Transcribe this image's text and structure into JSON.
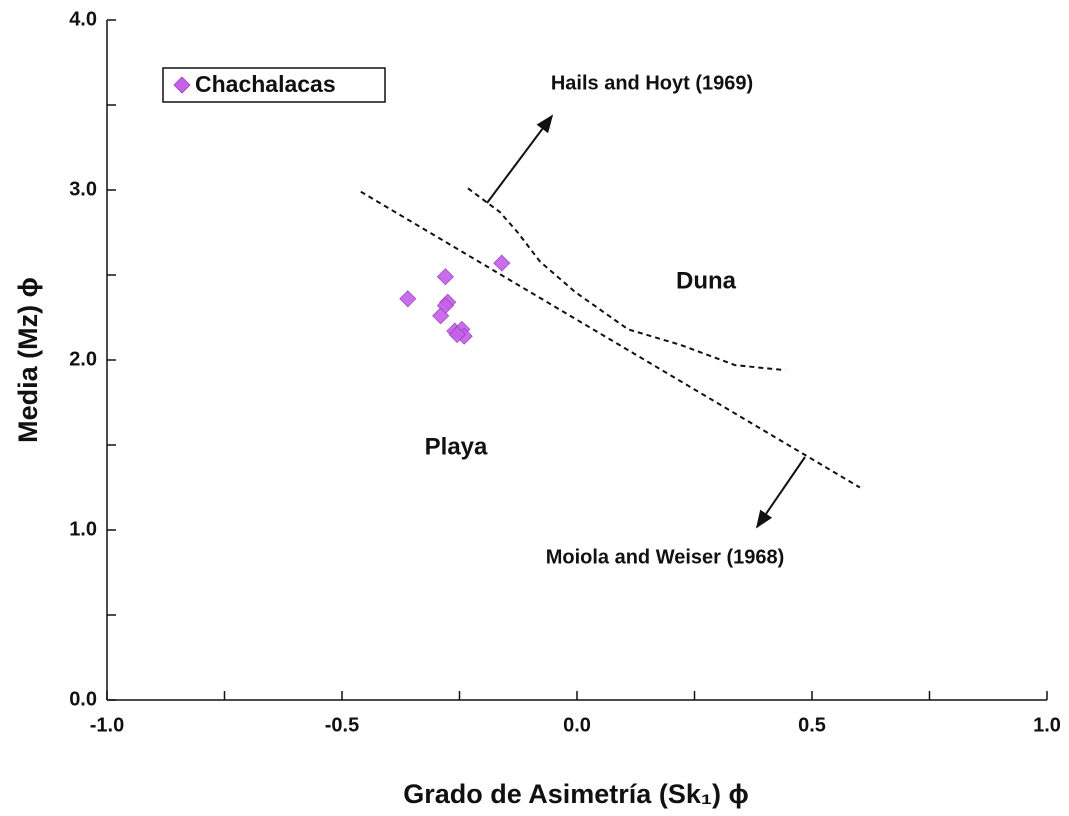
{
  "chart_data": {
    "type": "scatter",
    "xlabel": "Grado de Asimetría (Sk₁) ϕ",
    "ylabel": "Media (Mz) ϕ",
    "xlim": [
      -1,
      1
    ],
    "ylim": [
      0,
      4
    ],
    "xticks": [
      {
        "value": -1,
        "label": "-1.0"
      },
      {
        "value": -0.5,
        "label": "-0.5"
      },
      {
        "value": 0,
        "label": "0.0"
      },
      {
        "value": 0.5,
        "label": "0.5"
      },
      {
        "value": 1,
        "label": "1.0"
      }
    ],
    "xminorticks": [
      -0.75,
      -0.25,
      0.25,
      0.75
    ],
    "yticks": [
      {
        "value": 0,
        "label": "0.0"
      },
      {
        "value": 1,
        "label": "1.0"
      },
      {
        "value": 2,
        "label": "2.0"
      },
      {
        "value": 3,
        "label": "3.0"
      },
      {
        "value": 4,
        "label": "4.0"
      }
    ],
    "yminorticks": [
      0.5,
      1.5,
      2.5,
      3.5
    ],
    "series": [
      {
        "name": "Chachalacas",
        "color": "#c562e8",
        "x": [
          -0.36,
          -0.28,
          -0.275,
          -0.28,
          -0.29,
          -0.26,
          -0.245,
          -0.24,
          -0.255,
          -0.16
        ],
        "values": [
          2.36,
          2.49,
          2.34,
          2.32,
          2.26,
          2.17,
          2.18,
          2.14,
          2.15,
          2.57
        ]
      }
    ],
    "reference_lines": [
      {
        "label": "Hails and Hoyt (1969)",
        "x": [
          -0.232,
          -0.164,
          -0.126,
          -0.079,
          -0.004,
          0.109,
          0.219,
          0.336,
          0.443
        ],
        "y": [
          3.01,
          2.87,
          2.75,
          2.58,
          2.4,
          2.18,
          2.09,
          1.97,
          1.94
        ]
      },
      {
        "label": "Moiola and Weiser (1968)",
        "x": [
          -0.46,
          0.602
        ],
        "y": [
          2.99,
          1.25
        ]
      }
    ],
    "regions": [
      "Duna",
      "Playa"
    ],
    "legend": "upper left"
  }
}
